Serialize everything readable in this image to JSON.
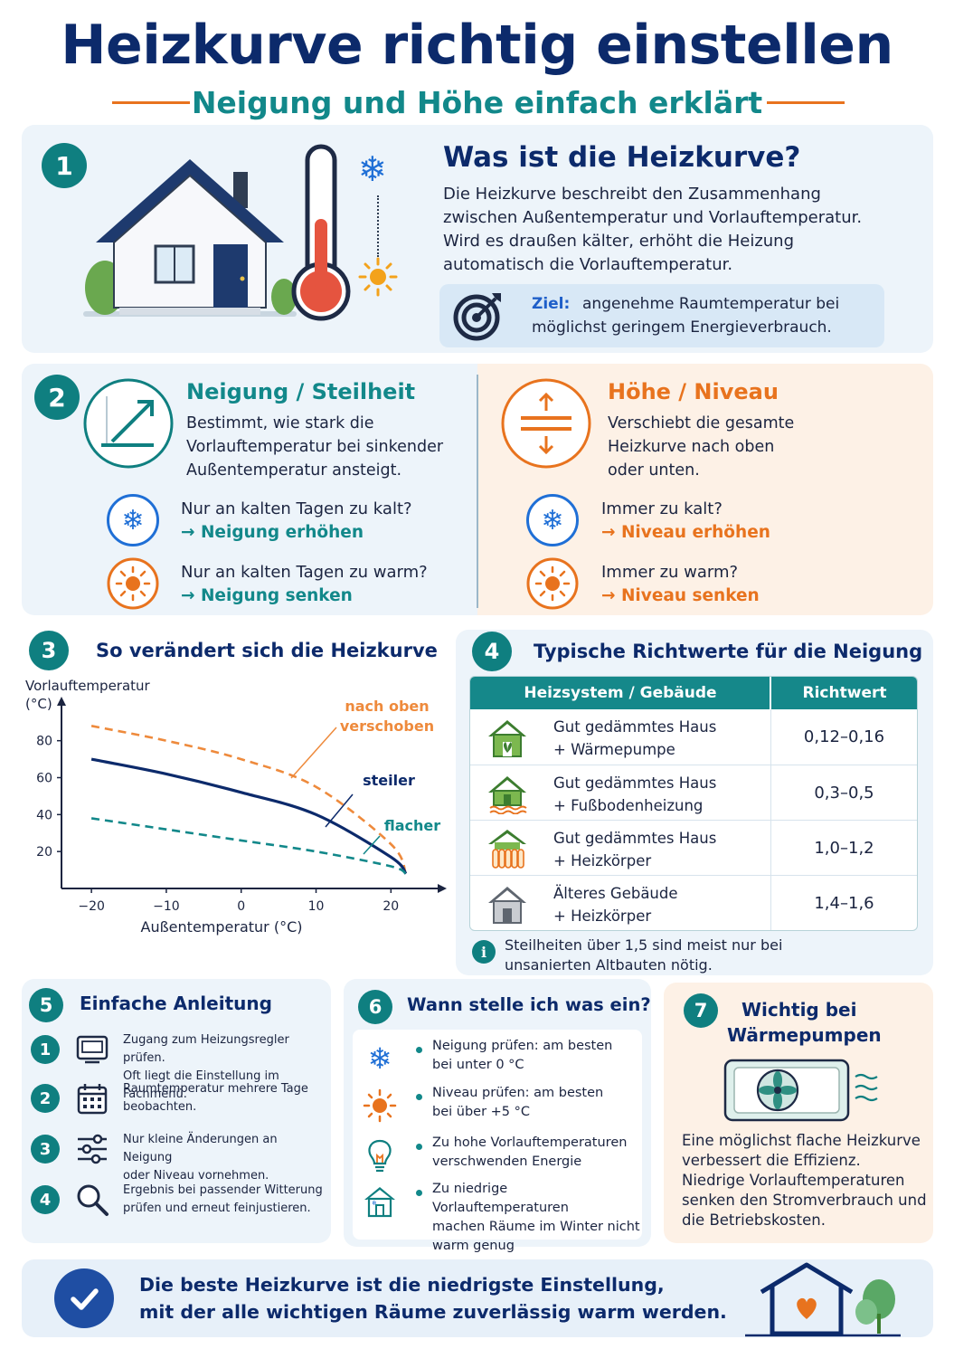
{
  "header": {
    "title": "Heizkurve richtig einstellen",
    "subtitle": "Neigung und Höhe einfach erklärt"
  },
  "section1": {
    "number": "1",
    "heading": "Was ist die Heizkurve?",
    "body": [
      "Die Heizkurve beschreibt den Zusammenhang",
      "zwischen Außentemperatur und Vorlauftemperatur.",
      "Wird es draußen kälter, erhöht die Heizung",
      "automatisch die Vorlauftemperatur."
    ],
    "goal_label": "Ziel:",
    "goal_text_1": "angenehme Raumtemperatur bei",
    "goal_text_2": "möglichst geringem Energieverbrauch."
  },
  "section2": {
    "number": "2",
    "neigung": {
      "heading": "Neigung / Steilheit",
      "body": [
        "Bestimmt, wie stark die",
        "Vorlauftemperatur bei sinkender",
        "Außentemperatur ansteigt."
      ],
      "cold_q": "Nur an kalten Tagen zu kalt?",
      "cold_a": "→ Neigung erhöhen",
      "warm_q": "Nur an kalten Tagen zu warm?",
      "warm_a": "→ Neigung senken"
    },
    "hoehe": {
      "heading": "Höhe / Niveau",
      "body": [
        "Verschiebt die gesamte",
        "Heizkurve nach oben",
        "oder unten."
      ],
      "cold_q": "Immer zu kalt?",
      "cold_a": "→ Niveau erhöhen",
      "warm_q": "Immer zu warm?",
      "warm_a": "→ Niveau senken"
    }
  },
  "section3": {
    "number": "3",
    "heading": "So verändert sich die Heizkurve"
  },
  "chart_data": {
    "type": "line",
    "ylabel": "Vorlauftemperatur (°C)",
    "ylabel_lines": [
      "Vorlauftemperatur",
      "(°C)"
    ],
    "xlabel": "Außentemperatur (°C)",
    "x_ticks": [
      -20,
      -10,
      0,
      10,
      20
    ],
    "x_tick_labels": [
      "−20",
      "−10",
      "0",
      "10",
      "20"
    ],
    "y_ticks": [
      20,
      40,
      60,
      80
    ],
    "y_tick_labels": [
      "20",
      "40",
      "60",
      "80"
    ],
    "xlim": [
      -24,
      26
    ],
    "ylim": [
      0,
      96
    ],
    "series": [
      {
        "name": "nach oben verschoben",
        "label_lines": [
          "nach oben",
          "verschoben"
        ],
        "style": "dashed",
        "color": "#ee8a3c",
        "x": [
          -20,
          -10,
          0,
          10,
          20,
          22
        ],
        "y": [
          88,
          80,
          70,
          55,
          24,
          8
        ]
      },
      {
        "name": "steiler",
        "label_lines": [
          "steiler"
        ],
        "style": "solid",
        "color": "#0c2a6b",
        "x": [
          -20,
          -10,
          0,
          10,
          20,
          22
        ],
        "y": [
          70,
          62,
          52,
          40,
          17,
          8
        ]
      },
      {
        "name": "flacher",
        "label_lines": [
          "flacher"
        ],
        "style": "dashed",
        "color": "#12888a",
        "x": [
          -20,
          -10,
          0,
          10,
          20,
          22
        ],
        "y": [
          38,
          32,
          26,
          20,
          12,
          8
        ]
      }
    ],
    "grid": false
  },
  "section4": {
    "number": "4",
    "heading": "Typische Richtwerte für die Neigung",
    "col_system": "Heizsystem / Gebäude",
    "col_value": "Richtwert",
    "rows": [
      {
        "line1": "Gut gedämmtes Haus",
        "line2": "+ Wärmepumpe",
        "value": "0,12–0,16",
        "icon": "house-heatpump-icon"
      },
      {
        "line1": "Gut gedämmtes Haus",
        "line2": "+ Fußbodenheizung",
        "value": "0,3–0,5",
        "icon": "house-floorheating-icon"
      },
      {
        "line1": "Gut gedämmtes Haus",
        "line2": "+ Heizkörper",
        "value": "1,0–1,2",
        "icon": "house-radiator-icon"
      },
      {
        "line1": "Älteres Gebäude",
        "line2": "+ Heizkörper",
        "value": "1,4–1,6",
        "icon": "old-house-icon"
      }
    ],
    "note_1": "Steilheiten über 1,5 sind meist nur bei",
    "note_2": "unsanierten Altbauten nötig."
  },
  "section5": {
    "number": "5",
    "heading": "Einfache Anleitung",
    "steps": [
      {
        "n": "1",
        "l1": "Zugang zum Heizungsregler prüfen.",
        "l2": "Oft liegt die Einstellung im Fachmenü."
      },
      {
        "n": "2",
        "l1": "Raumtemperatur mehrere Tage",
        "l2": "beobachten."
      },
      {
        "n": "3",
        "l1": "Nur kleine Änderungen an Neigung",
        "l2": "oder Niveau vornehmen."
      },
      {
        "n": "4",
        "l1": "Ergebnis bei passender Witterung",
        "l2": "prüfen und erneut feinjustieren."
      }
    ]
  },
  "section6": {
    "number": "6",
    "heading": "Wann stelle ich was ein?",
    "items": [
      {
        "l1": "Neigung prüfen: am besten",
        "l2": "bei unter 0 °C",
        "l3": ""
      },
      {
        "l1": "Niveau prüfen: am besten",
        "l2": "bei über +5 °C",
        "l3": ""
      },
      {
        "l1": "Zu hohe Vorlauftemperaturen",
        "l2": "verschwenden Energie",
        "l3": ""
      },
      {
        "l1": "Zu niedrige Vorlauftemperaturen",
        "l2": "machen Räume im Winter nicht",
        "l3": "warm genug"
      }
    ]
  },
  "section7": {
    "number": "7",
    "heading_1": "Wichtig bei",
    "heading_2": "Wärmepumpen",
    "body": [
      "Eine möglichst flache Heizkurve",
      "verbessert die Effizienz.",
      "Niedrige Vorlauftemperaturen",
      "senken den Stromverbrauch und",
      "die Betriebskosten."
    ]
  },
  "footer": {
    "line1": "Die beste Heizkurve ist die niedrigste Einstellung,",
    "line2": "mit der alle wichtigen Räume zuverlässig warm werden."
  },
  "colors": {
    "navy": "#0c2a6b",
    "teal": "#12888a",
    "orange": "#e8731e",
    "card_blue": "#edf4fa",
    "card_orange": "#fdf1e6"
  }
}
